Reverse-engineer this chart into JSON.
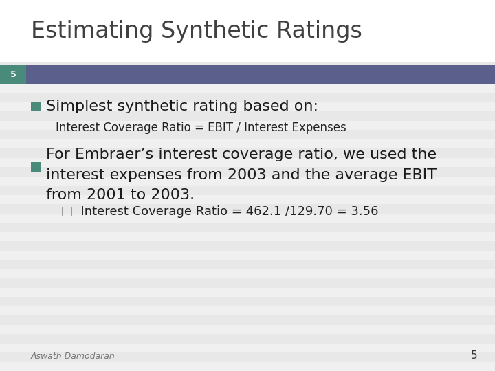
{
  "title": "Estimating Synthetic Ratings",
  "slide_number": "5",
  "header_bar_color": "#5B5F8C",
  "slide_num_box_color": "#4A8A7A",
  "title_color": "#404040",
  "bg_color": "#F5F5F5",
  "title_bg_color": "#FFFFFF",
  "bullet_sq_color": "#4A8A7A",
  "bullet1_text": "Simplest synthetic rating based on:",
  "sub_bullet1_text": "Interest Coverage Ratio = EBIT / Interest Expenses",
  "bullet2_text": "For Embraer’s interest coverage ratio, we used the\ninterest expenses from 2003 and the average EBIT\nfrom 2001 to 2003.",
  "sub_bullet2_text": "□  Interest Coverage Ratio = 462.1 /129.70 = 3.56",
  "footer_text": "Aswath Damodaran",
  "footer_number": "5",
  "title_fontsize": 24,
  "bullet_fontsize": 16,
  "sub_bullet_fontsize": 12,
  "sub2_fontsize": 13,
  "footer_fontsize": 9,
  "stripe_colors": [
    "#F0F0F0",
    "#E8E8E8"
  ],
  "num_stripes": 40
}
